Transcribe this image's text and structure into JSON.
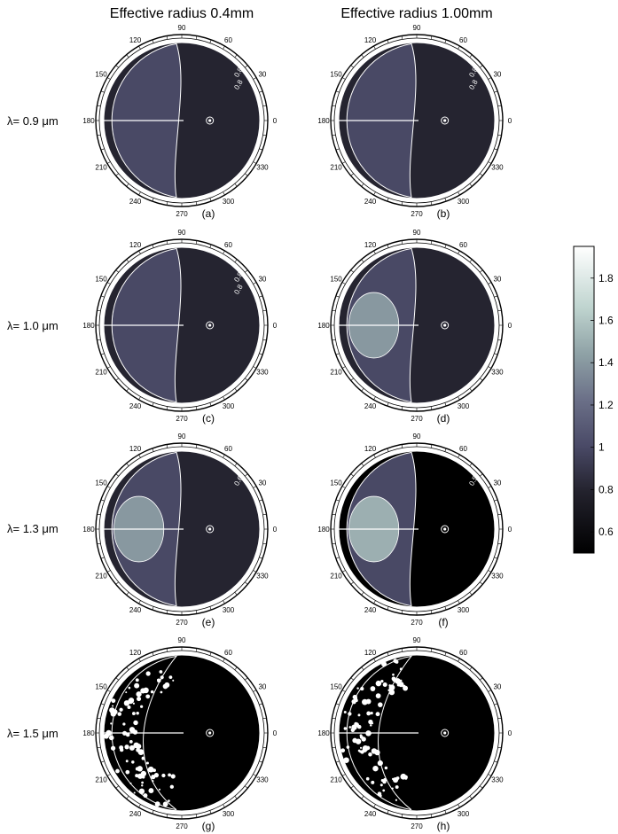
{
  "chart_data": {
    "type": "heatmap",
    "column_titles": [
      "Effective radius 0.4mm",
      "Effective radius 1.00mm"
    ],
    "row_labels": [
      "λ= 0.9 μm",
      "λ= 1.0 μm",
      "λ= 1.3 μm",
      "λ= 1.5 μm"
    ],
    "angular_ticks": [
      "0",
      "30",
      "60",
      "90",
      "120",
      "150",
      "180",
      "210",
      "240",
      "270",
      "300",
      "330"
    ],
    "panels": [
      {
        "label": "(a)",
        "left_value": 1.0,
        "right_value": 0.8,
        "contour_labels": [
          "0.8",
          "0.8"
        ]
      },
      {
        "label": "(b)",
        "left_value": 1.0,
        "right_value": 0.8,
        "contour_labels": [
          "0.8",
          "0.8"
        ]
      },
      {
        "label": "(c)",
        "left_value": 1.0,
        "right_value": 0.8,
        "contour_labels": [
          "0.8",
          "0.8"
        ]
      },
      {
        "label": "(d)",
        "left_value": 1.0,
        "right_value": 0.8,
        "inner_value": 1.4,
        "contour_labels": []
      },
      {
        "label": "(e)",
        "left_value": 1.0,
        "right_value": 0.8,
        "inner_value": 1.4,
        "contour_labels": [
          "0.6"
        ]
      },
      {
        "label": "(f)",
        "left_value": 1.0,
        "right_value": 0.5,
        "inner_value": 1.5,
        "contour_labels": [
          "0.5"
        ]
      },
      {
        "label": "(g)",
        "left_value": 0.5,
        "right_value": 0.5,
        "contour_labels": []
      },
      {
        "label": "(h)",
        "left_value": 0.5,
        "right_value": 0.5,
        "contour_labels": []
      }
    ],
    "colorbar": {
      "ticks": [
        "0.6",
        "0.8",
        "1",
        "1.2",
        "1.4",
        "1.6",
        "1.8"
      ],
      "tick_values": [
        0.6,
        0.8,
        1.0,
        1.2,
        1.4,
        1.6,
        1.8
      ],
      "range": [
        0.5,
        1.95
      ],
      "colors": [
        "#000000",
        "#23222d",
        "#4a4a67",
        "#6b7088",
        "#8fa2a6",
        "#bfd4cf",
        "#ffffff"
      ]
    }
  }
}
